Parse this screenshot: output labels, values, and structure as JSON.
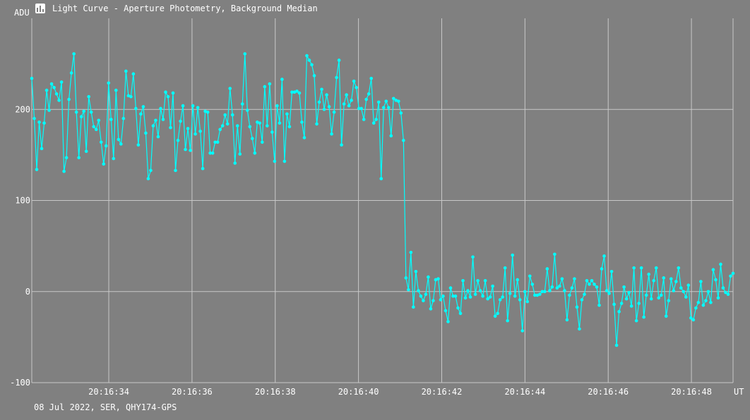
{
  "window": {
    "title": "Light Curve - Aperture Photometry, Background Median",
    "icon": "chart-window-icon"
  },
  "footer": {
    "info": "08 Jul 2022, SER, QHY174-GPS"
  },
  "colors": {
    "background": "#808080",
    "grid": "#c8c8c8",
    "series": "#00ffff",
    "text": "#ffffff"
  },
  "chart_data": {
    "type": "line",
    "title": "Light Curve - Aperture Photometry, Background Median",
    "xlabel": "UT",
    "ylabel": "ADU",
    "ylim": [
      -100,
      300
    ],
    "xlim": [
      "20:16:32.15",
      "20:16:49.00"
    ],
    "grid": true,
    "markers": true,
    "yticks": [
      -100,
      0,
      100,
      200
    ],
    "xticks": [
      "20:16:34",
      "20:16:36",
      "20:16:38",
      "20:16:40",
      "20:16:42",
      "20:16:44",
      "20:16:46",
      "20:16:48"
    ],
    "series": [
      {
        "values": [
          234,
          190,
          134,
          186,
          157,
          185,
          221,
          199,
          228,
          224,
          217,
          210,
          230,
          132,
          147,
          211,
          240,
          261,
          197,
          147,
          192,
          198,
          154,
          214,
          197,
          181,
          178,
          188,
          164,
          140,
          160,
          229,
          189,
          146,
          221,
          167,
          162,
          190,
          242,
          215,
          214,
          239,
          201,
          161,
          195,
          203,
          174,
          124,
          133,
          182,
          188,
          170,
          201,
          189,
          219,
          214,
          180,
          218,
          133,
          166,
          187,
          204,
          156,
          179,
          155,
          204,
          173,
          202,
          176,
          135,
          198,
          197,
          152,
          152,
          164,
          164,
          178,
          182,
          194,
          184,
          223,
          194,
          141,
          182,
          151,
          206,
          261,
          199,
          181,
          168,
          152,
          186,
          185,
          164,
          225,
          182,
          228,
          175,
          143,
          204,
          185,
          233,
          143,
          195,
          181,
          219,
          219,
          220,
          218,
          186,
          169,
          259,
          254,
          249,
          237,
          184,
          208,
          222,
          200,
          216,
          203,
          173,
          197,
          235,
          254,
          161,
          206,
          216,
          204,
          210,
          231,
          224,
          201,
          201,
          189,
          211,
          217,
          234,
          185,
          189,
          208,
          124,
          202,
          209,
          202,
          171,
          212,
          210,
          209,
          196,
          166,
          15,
          2,
          43,
          -17,
          22,
          1,
          -5,
          -10,
          -3,
          16,
          -19,
          -10,
          13,
          14,
          -9,
          -5,
          -21,
          -33,
          4,
          -5,
          -5,
          -18,
          -24,
          12,
          -7,
          1,
          -6,
          38,
          -3,
          12,
          1,
          -5,
          12,
          -8,
          -6,
          6,
          -27,
          -24,
          -9,
          -6,
          26,
          -32,
          -2,
          40,
          -5,
          13,
          -9,
          -43,
          0,
          -11,
          17,
          8,
          -4,
          -4,
          -3,
          0,
          0,
          25,
          1,
          5,
          41,
          4,
          6,
          14,
          1,
          -31,
          -4,
          4,
          14,
          -17,
          -41,
          -9,
          -3,
          12,
          8,
          12,
          8,
          5,
          -15,
          25,
          39,
          1,
          -2,
          22,
          -14,
          -59,
          -22,
          -13,
          5,
          -8,
          -1,
          -16,
          26,
          -32,
          -13,
          26,
          -28,
          -4,
          19,
          -8,
          12,
          26,
          -7,
          -4,
          15,
          -27,
          -10,
          14,
          1,
          11,
          26,
          4,
          0,
          -6,
          7,
          -29,
          -31,
          -18,
          -12,
          11,
          -15,
          -10,
          0,
          -12,
          24,
          13,
          -7,
          30,
          4,
          -1,
          -3,
          17,
          20
        ]
      }
    ]
  }
}
